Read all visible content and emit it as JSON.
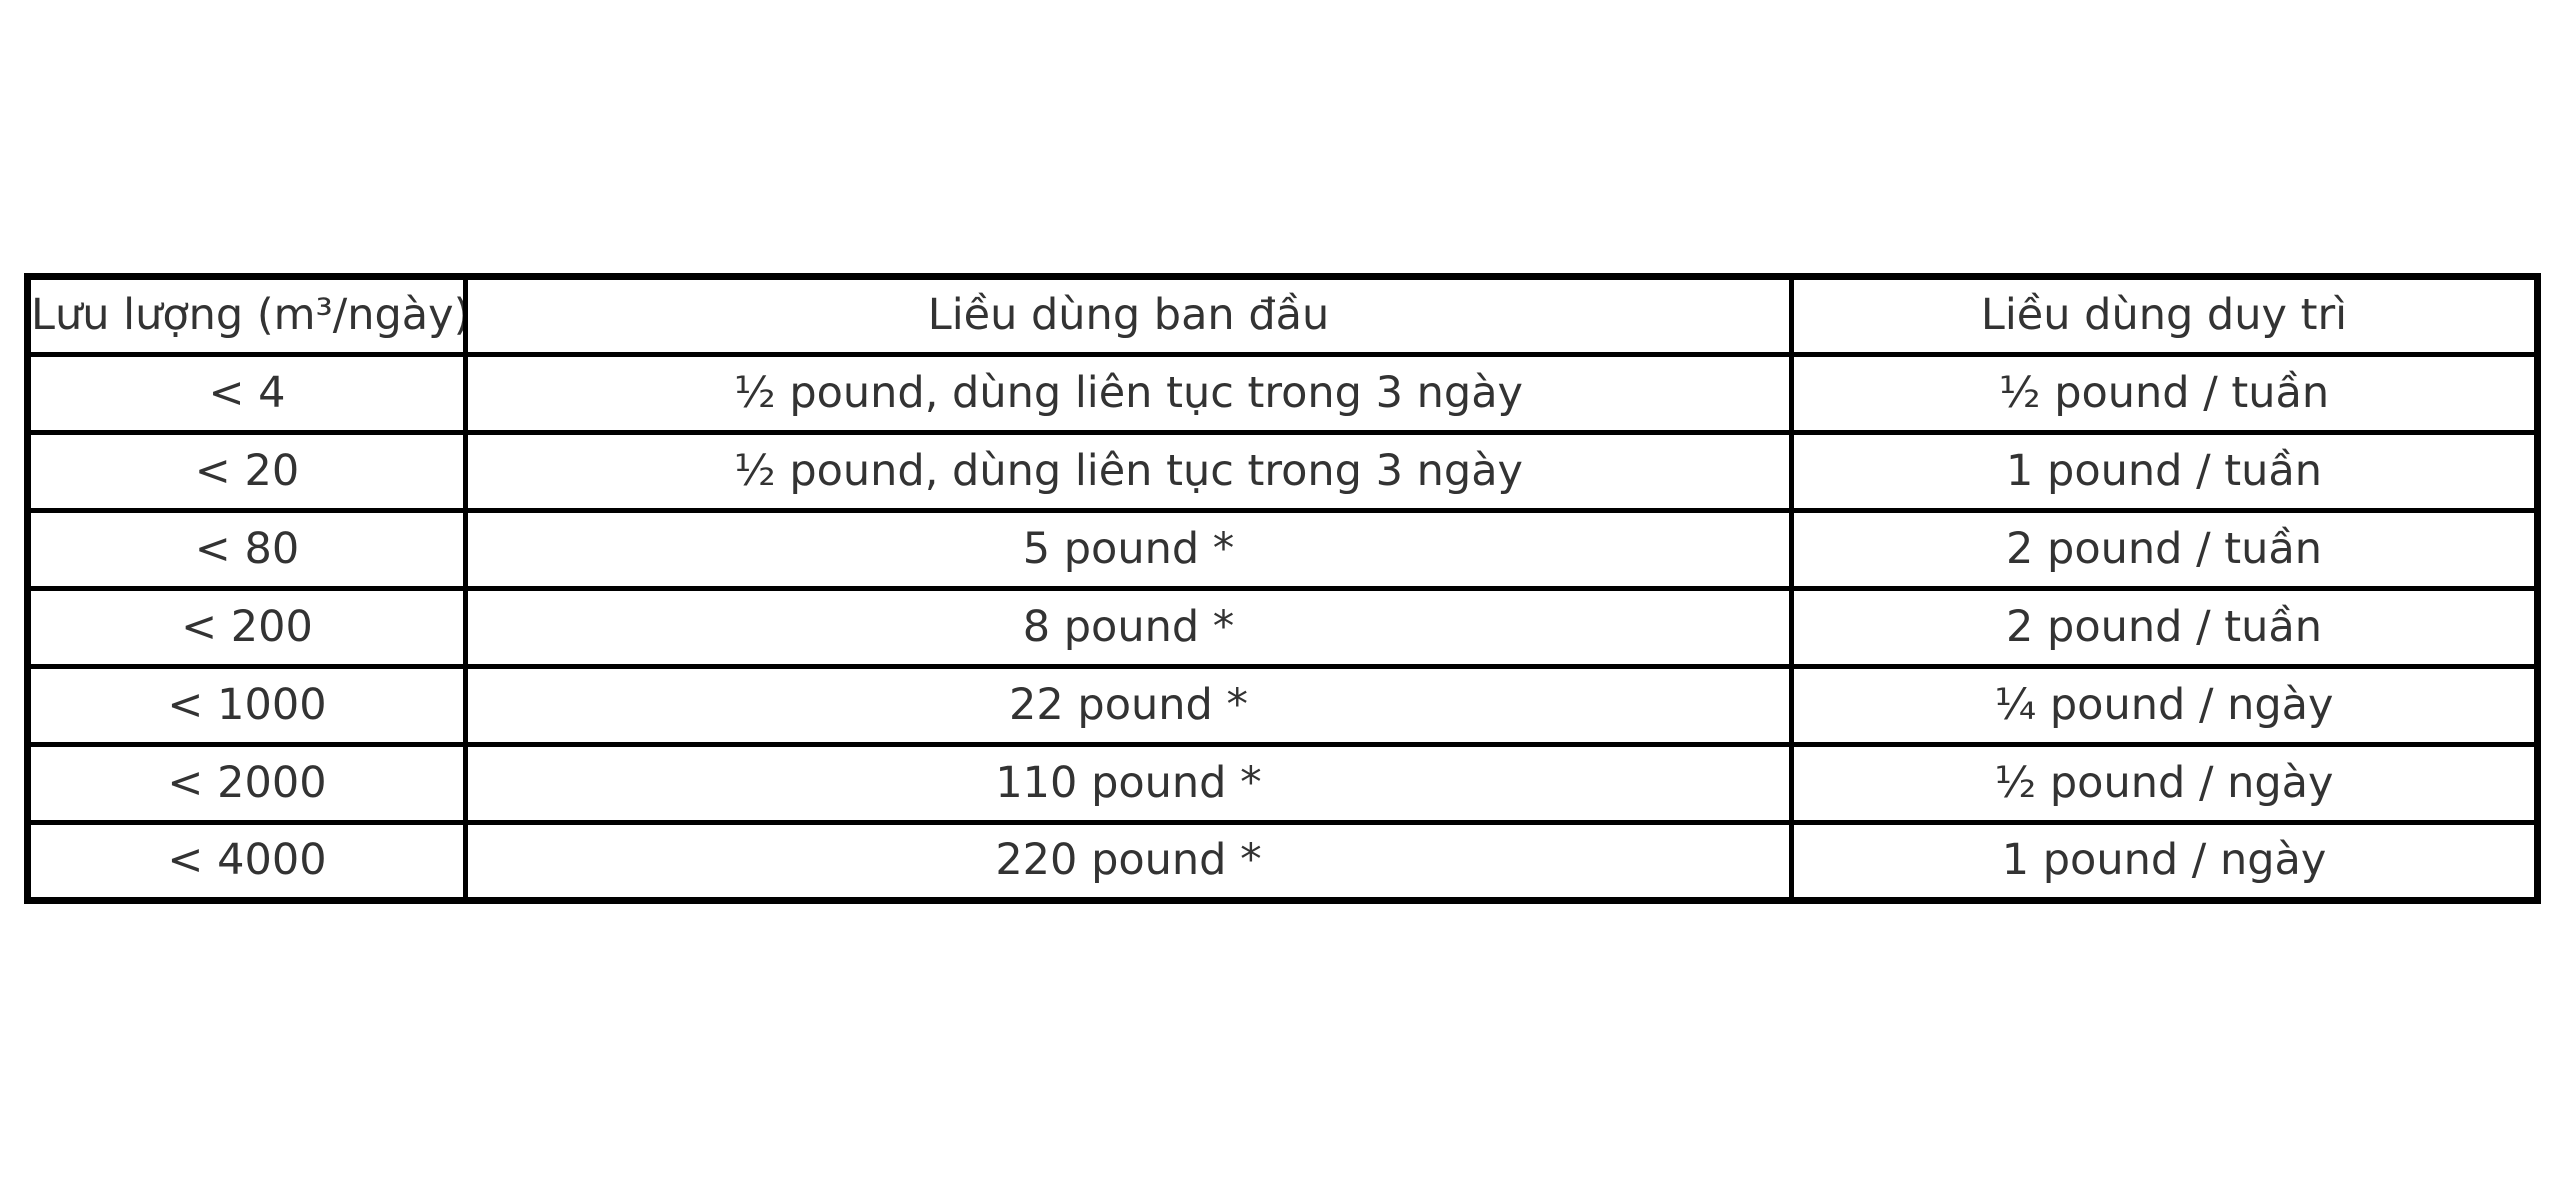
{
  "table": {
    "columns": [
      "Lưu lượng (m³/ngày)",
      "Liều dùng ban đầu",
      "Liều dùng duy trì"
    ],
    "rows": [
      [
        "< 4",
        "½ pound, dùng liên tục trong 3 ngày",
        "½ pound / tuần"
      ],
      [
        "< 20",
        "½ pound, dùng liên tục trong 3 ngày",
        "1 pound / tuần"
      ],
      [
        "< 80",
        "5 pound *",
        "2 pound / tuần"
      ],
      [
        "< 200",
        "8 pound *",
        "2 pound / tuần"
      ],
      [
        "< 1000",
        "22 pound *",
        "¼ pound / ngày"
      ],
      [
        "< 2000",
        "110 pound *",
        "½ pound / ngày"
      ],
      [
        "< 4000",
        "220 pound *",
        "1 pound / ngày"
      ]
    ]
  },
  "chart_data": {
    "type": "table",
    "title": "",
    "columns": [
      "Lưu lượng (m³/ngày)",
      "Liều dùng ban đầu",
      "Liều dùng duy trì"
    ],
    "rows": [
      [
        "< 4",
        "½ pound, dùng liên tục trong 3 ngày",
        "½ pound / tuần"
      ],
      [
        "< 20",
        "½ pound, dùng liên tục trong 3 ngày",
        "1 pound / tuần"
      ],
      [
        "< 80",
        "5 pound *",
        "2 pound / tuần"
      ],
      [
        "< 200",
        "8 pound *",
        "2 pound / tuần"
      ],
      [
        "< 1000",
        "22 pound *",
        "¼ pound / ngày"
      ],
      [
        "< 2000",
        "110 pound *",
        "½ pound / ngày"
      ],
      [
        "< 4000",
        "220 pound *",
        "1 pound / ngày"
      ]
    ],
    "layout_hints": {
      "grid": "all-borders",
      "header_row": true,
      "text_align": "center"
    }
  },
  "colors": {
    "background": "#ffffff",
    "border": "#000000",
    "text": "#333333"
  }
}
